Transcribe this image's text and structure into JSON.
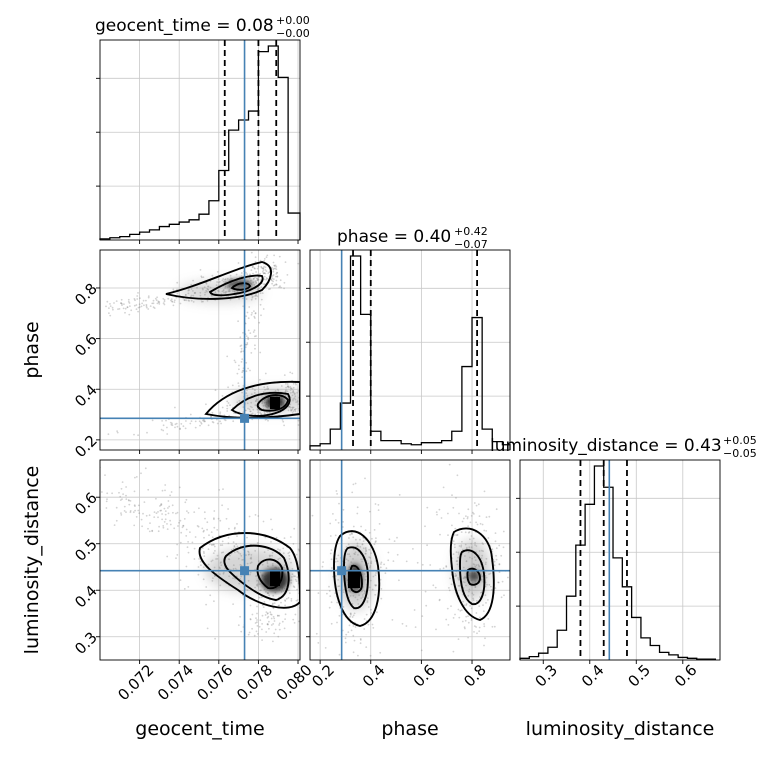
{
  "chart_data": {
    "type": "corner",
    "parameters": [
      "geocent_time",
      "phase",
      "luminosity_distance"
    ],
    "axis_labels": {
      "geocent_time": "geocent_time",
      "phase": "phase",
      "luminosity_distance": "luminosity_distance"
    },
    "titles": [
      {
        "text": "geocent_time = 0.08",
        "sup": "+0.00",
        "sub": "−0.00"
      },
      {
        "text": "phase = 0.40",
        "sup": "+0.42",
        "sub": "−0.07"
      },
      {
        "text": "luminosity_distance = 0.43",
        "sup": "+0.05",
        "sub": "−0.05"
      }
    ],
    "ranges": {
      "geocent_time": [
        0.07,
        0.0801
      ],
      "phase": [
        0.16,
        0.95
      ],
      "luminosity_distance": [
        0.25,
        0.68
      ]
    },
    "ticks": {
      "geocent_time": [
        0.072,
        0.074,
        0.076,
        0.078,
        0.08
      ],
      "phase": [
        0.2,
        0.4,
        0.6,
        0.8
      ],
      "luminosity_distance": [
        0.3,
        0.4,
        0.5,
        0.6
      ]
    },
    "tick_labels": {
      "geocent_time": [
        "0.072",
        "0.074",
        "0.076",
        "0.078",
        "0.080"
      ],
      "phase": [
        "0.2",
        "0.4",
        "0.6",
        "0.8"
      ],
      "luminosity_distance": [
        "0.3",
        "0.4",
        "0.5",
        "0.6"
      ]
    },
    "truths": {
      "geocent_time": 0.0773,
      "phase": 0.285,
      "luminosity_distance": 0.442
    },
    "quantiles": {
      "geocent_time": [
        0.0763,
        0.078,
        0.0789
      ],
      "phase": [
        0.33,
        0.4,
        0.82
      ],
      "luminosity_distance": [
        0.38,
        0.43,
        0.48
      ]
    },
    "histograms": {
      "geocent_time": {
        "edges": [
          0.07,
          0.0705,
          0.071,
          0.0715,
          0.072,
          0.0725,
          0.073,
          0.0735,
          0.074,
          0.0745,
          0.075,
          0.0755,
          0.076,
          0.0765,
          0.077,
          0.0775,
          0.078,
          0.0785,
          0.079,
          0.0795,
          0.0801
        ],
        "counts": [
          1,
          2,
          3,
          5,
          7,
          9,
          12,
          14,
          16,
          18,
          23,
          35,
          62,
          98,
          107,
          115,
          168,
          173,
          145,
          24
        ]
      },
      "phase": {
        "edges": [
          0.16,
          0.2,
          0.24,
          0.28,
          0.32,
          0.36,
          0.4,
          0.44,
          0.48,
          0.52,
          0.56,
          0.6,
          0.64,
          0.68,
          0.72,
          0.76,
          0.8,
          0.84,
          0.88,
          0.92,
          0.95
        ],
        "counts": [
          4,
          6,
          20,
          45,
          186,
          130,
          18,
          9,
          9,
          6,
          5,
          7,
          7,
          9,
          18,
          80,
          127,
          20,
          8,
          5
        ]
      },
      "luminosity_distance": {
        "edges": [
          0.25,
          0.27,
          0.29,
          0.31,
          0.33,
          0.35,
          0.37,
          0.39,
          0.41,
          0.43,
          0.45,
          0.47,
          0.49,
          0.51,
          0.53,
          0.55,
          0.57,
          0.59,
          0.61,
          0.63,
          0.65,
          0.67
        ],
        "counts": [
          2,
          4,
          8,
          15,
          35,
          75,
          135,
          183,
          228,
          203,
          120,
          86,
          50,
          26,
          17,
          9,
          6,
          3,
          2,
          1,
          1
        ]
      }
    },
    "grid": true
  }
}
